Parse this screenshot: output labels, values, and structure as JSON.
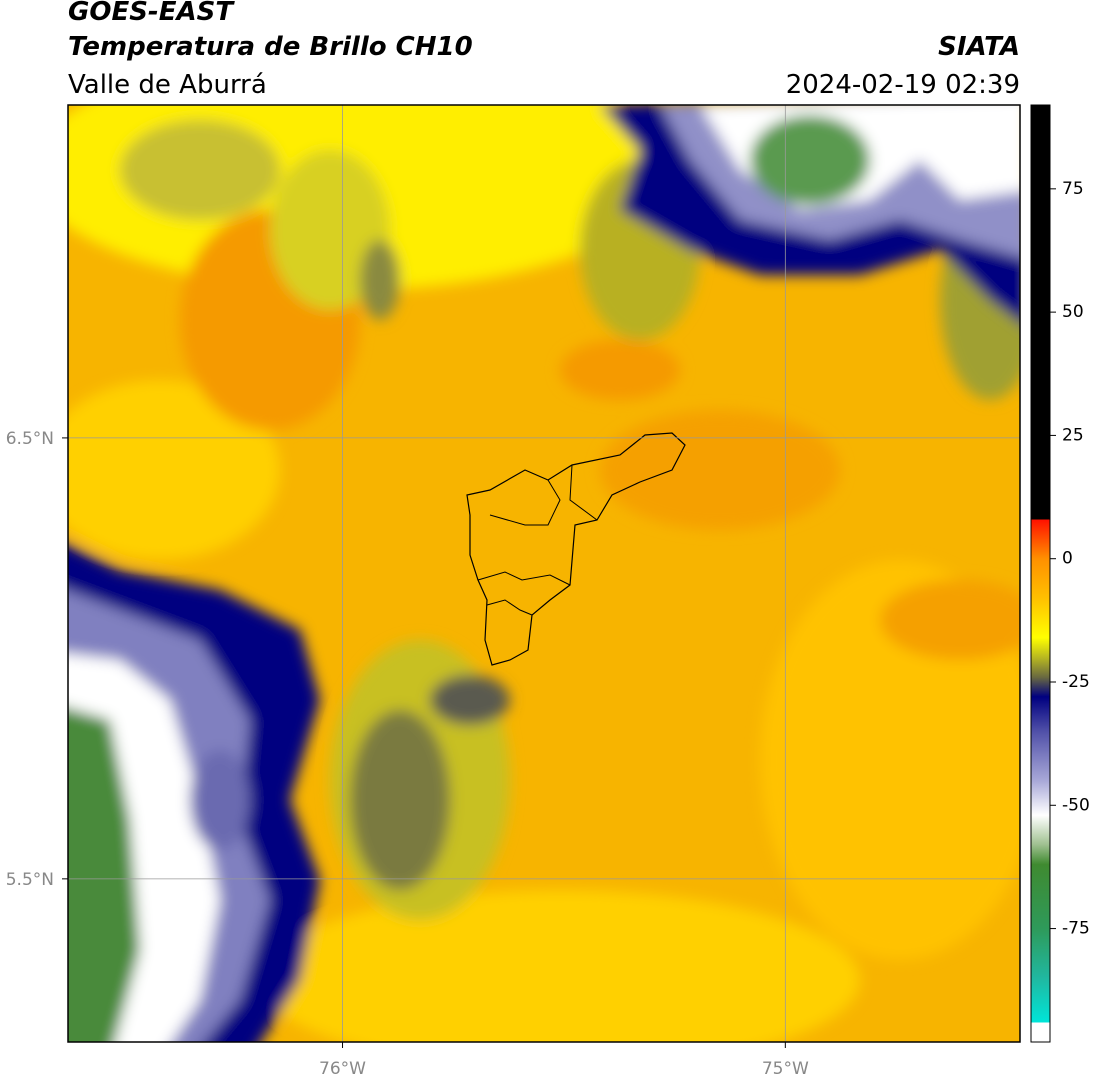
{
  "header": {
    "title": "GOES-EAST",
    "subtitle": "Temperatura de Brillo CH10",
    "region": "Valle de Aburrá",
    "source": "SIATA",
    "datetime": "2024-02-19 02:39"
  },
  "map": {
    "latlim": [
      5.13,
      7.255
    ],
    "lonlim": [
      -76.62,
      -74.47
    ],
    "lat_ticks": [
      {
        "value": 6.5,
        "label": "6.5°N"
      },
      {
        "value": 5.5,
        "label": "5.5°N"
      }
    ],
    "lon_ticks": [
      {
        "value": -76,
        "label": "76°W"
      },
      {
        "value": -75,
        "label": "75°W"
      }
    ]
  },
  "colorbar": {
    "lim": [
      -98,
      92
    ],
    "ticks": [
      75,
      50,
      25,
      0,
      -25,
      -50,
      -75
    ],
    "stops": [
      {
        "value": 92,
        "color": "#000000"
      },
      {
        "value": 8,
        "color": "#000000"
      },
      {
        "value": 8,
        "color": "#ff1000"
      },
      {
        "value": 0,
        "color": "#ff9000"
      },
      {
        "value": -8,
        "color": "#ffc000"
      },
      {
        "value": -16,
        "color": "#ffff00"
      },
      {
        "value": -20,
        "color": "#b8b820"
      },
      {
        "value": -24,
        "color": "#6a6a40"
      },
      {
        "value": -28,
        "color": "#000080"
      },
      {
        "value": -35,
        "color": "#5050a8"
      },
      {
        "value": -45,
        "color": "#a8a8d8"
      },
      {
        "value": -52,
        "color": "#ffffff"
      },
      {
        "value": -58,
        "color": "#9fc090"
      },
      {
        "value": -62,
        "color": "#3f8a30"
      },
      {
        "value": -75,
        "color": "#2e9a5a"
      },
      {
        "value": -85,
        "color": "#20b8a0"
      },
      {
        "value": -94,
        "color": "#00e5d8"
      },
      {
        "value": -94,
        "color": "#ffffff"
      },
      {
        "value": -98,
        "color": "#ffffff"
      }
    ]
  }
}
